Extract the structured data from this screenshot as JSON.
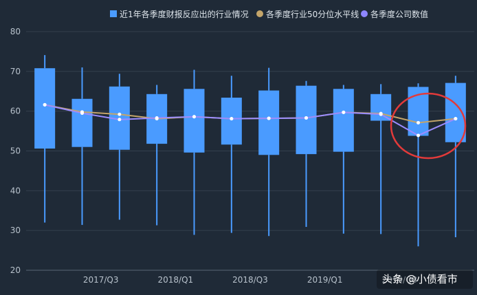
{
  "chart_data": {
    "type": "boxplot",
    "colors": {
      "background": "#1f2a37",
      "box": "#4a9bff",
      "median_line": "#c4a56a",
      "company_line": "#9b8cff",
      "highlight_circle": "#e23a3a",
      "grid": "#34404e"
    },
    "legend": [
      {
        "label": "近1年各季度财报反应出的行业情况",
        "shape": "square",
        "color": "#4a9bff"
      },
      {
        "label": "各季度行业50分位水平线",
        "shape": "circle",
        "color": "#c4a56a"
      },
      {
        "label": "各季度公司数值",
        "shape": "circle",
        "color": "#8e86ff"
      }
    ],
    "legend_position": "top-right",
    "ylim": [
      20,
      80
    ],
    "yticks": [
      "20",
      "30",
      "40",
      "50",
      "60",
      "70",
      "80"
    ],
    "xtick_labels": [
      {
        "index": 1,
        "label": "2017/Q3"
      },
      {
        "index": 3,
        "label": "2018/Q1"
      },
      {
        "index": 5,
        "label": "2018/Q3"
      },
      {
        "index": 7,
        "label": "2019/Q1"
      },
      {
        "index": 9,
        "label": "2019/Q3"
      }
    ],
    "boxes": [
      {
        "min": 32,
        "q1": 50.6,
        "q3": 70.8,
        "max": 74.1
      },
      {
        "min": 31.4,
        "q1": 51.0,
        "q3": 63.1,
        "max": 71.0
      },
      {
        "min": 32.7,
        "q1": 50.3,
        "q3": 66.2,
        "max": 69.4
      },
      {
        "min": 31.3,
        "q1": 51.8,
        "q3": 64.3,
        "max": 66.6
      },
      {
        "min": 28.9,
        "q1": 49.6,
        "q3": 65.6,
        "max": 70.4
      },
      {
        "min": 29.4,
        "q1": 51.6,
        "q3": 63.4,
        "max": 68.9
      },
      {
        "min": 28.6,
        "q1": 49.0,
        "q3": 65.2,
        "max": 70.9
      },
      {
        "min": 30.9,
        "q1": 49.2,
        "q3": 66.4,
        "max": 67.6
      },
      {
        "min": 29.2,
        "q1": 49.8,
        "q3": 65.6,
        "max": 66.6
      },
      {
        "min": 29.1,
        "q1": 57.6,
        "q3": 64.3,
        "max": 66.8
      },
      {
        "min": 26.0,
        "q1": 53.8,
        "q3": 66.1,
        "max": 67.0
      },
      {
        "min": 28.3,
        "q1": 52.2,
        "q3": 67.1,
        "max": 68.9
      }
    ],
    "series": [
      {
        "name": "各季度行业50分位水平线",
        "values": [
          61.6,
          59.8,
          59.2,
          58.1,
          58.6,
          58.1,
          58.2,
          58.3,
          59.7,
          59.4,
          57.1,
          58.1
        ]
      },
      {
        "name": "各季度公司数值",
        "values": [
          61.6,
          59.5,
          57.9,
          58.3,
          58.6,
          58.1,
          58.2,
          58.3,
          59.7,
          59.2,
          53.9,
          58.1
        ]
      }
    ],
    "watermark": "头条 @小债看市"
  }
}
